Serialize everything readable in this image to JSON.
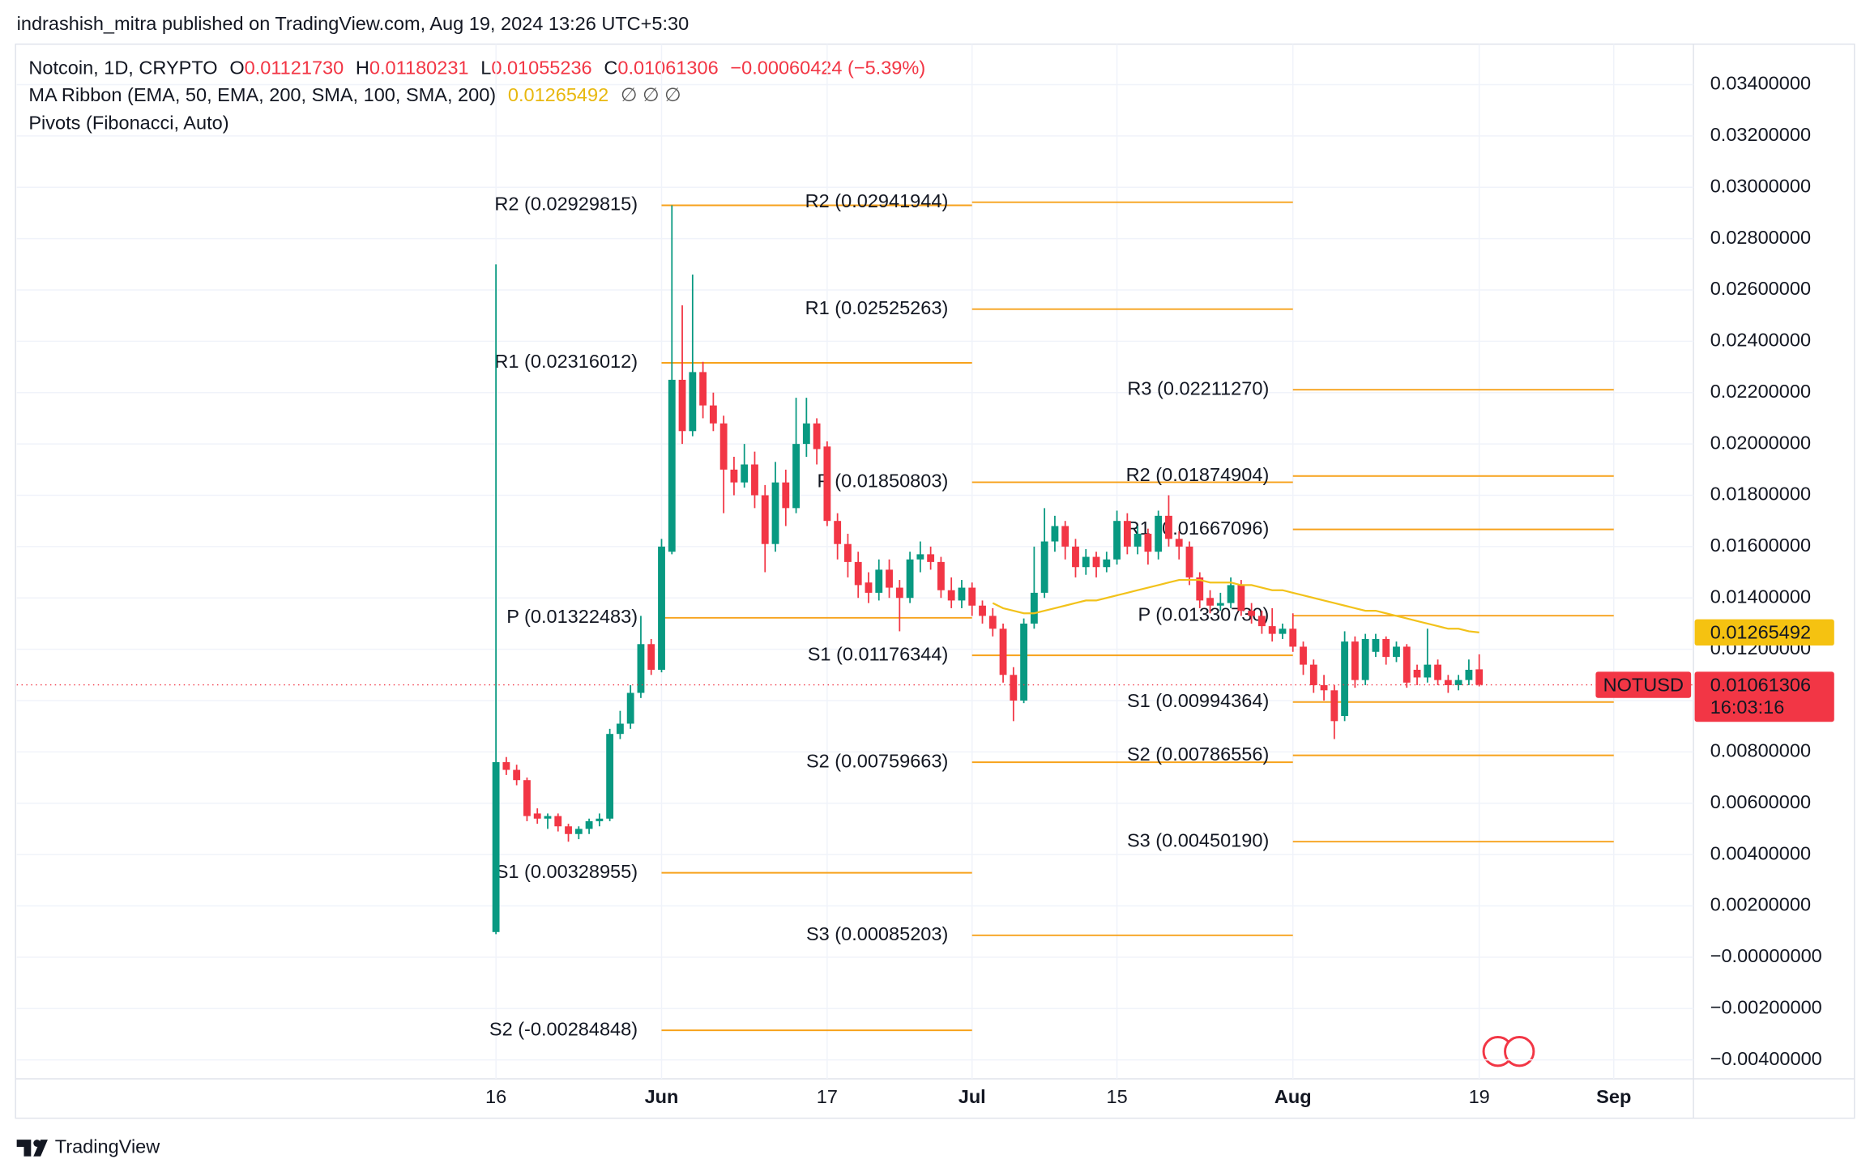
{
  "header": {
    "published": "indrashish_mitra published on TradingView.com, Aug 19, 2024 13:26 UTC+5:30",
    "symbol": "Notcoin, 1D, CRYPTO",
    "o_label": "O",
    "o": "0.01121730",
    "h_label": "H",
    "h": "0.01180231",
    "l_label": "L",
    "l": "0.01055236",
    "c_label": "C",
    "c": "0.01061306",
    "change": "−0.00060424 (−5.39%)",
    "ma_ribbon": "MA Ribbon (EMA, 50, EMA, 200, SMA, 100, SMA, 200)",
    "ma_empty": "∅ ∅ ∅",
    "pivots": "Pivots (Fibonacci, Auto)",
    "countdown": "16:03:16"
  },
  "footer": "TradingView",
  "chart_data": {
    "type": "candlestick",
    "xlim": [
      -46.3,
      115.7
    ],
    "xticks": [
      {
        "value": 0,
        "label": "16"
      },
      {
        "value": 16,
        "label": "Jun"
      },
      {
        "value": 32,
        "label": "17"
      },
      {
        "value": 46,
        "label": "Jul"
      },
      {
        "value": 60,
        "label": "15"
      },
      {
        "value": 77,
        "label": "Aug"
      },
      {
        "value": 95,
        "label": "19"
      },
      {
        "value": 108,
        "label": "Sep"
      }
    ],
    "ylim": [
      -0.00474,
      0.03558
    ],
    "yticks": [
      {
        "value": 0.034,
        "label": "0.03400000"
      },
      {
        "value": 0.032,
        "label": "0.03200000"
      },
      {
        "value": 0.03,
        "label": "0.03000000"
      },
      {
        "value": 0.028,
        "label": "0.02800000"
      },
      {
        "value": 0.026,
        "label": "0.02600000"
      },
      {
        "value": 0.024,
        "label": "0.02400000"
      },
      {
        "value": 0.022,
        "label": "0.02200000"
      },
      {
        "value": 0.02,
        "label": "0.02000000"
      },
      {
        "value": 0.018,
        "label": "0.01800000"
      },
      {
        "value": 0.016,
        "label": "0.01600000"
      },
      {
        "value": 0.014,
        "label": "0.01400000"
      },
      {
        "value": 0.012,
        "label": "0.01200000"
      },
      {
        "value": 0.01,
        "label": "0.01000000"
      },
      {
        "value": 0.008,
        "label": "0.00800000"
      },
      {
        "value": 0.006,
        "label": "0.00600000"
      },
      {
        "value": 0.004,
        "label": "0.00400000"
      },
      {
        "value": 0.002,
        "label": "0.00200000"
      },
      {
        "value": 0,
        "label": "−0.00000000"
      },
      {
        "value": -0.002,
        "label": "−0.00200000"
      },
      {
        "value": -0.004,
        "label": "−0.00400000"
      }
    ],
    "grid": true,
    "series": [
      {
        "name": "NOTUSD",
        "up_color": "#089981",
        "down_color": "#f23645",
        "open": [
          0.00098,
          0.0076,
          0.0073,
          0.0069,
          0.0056,
          0.0054,
          0.0055,
          0.0051,
          0.0048,
          0.005,
          0.0053,
          0.0054,
          0.0087,
          0.0091,
          0.0103,
          0.0122,
          0.0112,
          0.0158,
          0.0225,
          0.0205,
          0.0228,
          0.0215,
          0.0208,
          0.019,
          0.0185,
          0.0192,
          0.018,
          0.0161,
          0.0185,
          0.0175,
          0.02,
          0.0208,
          0.0199,
          0.017,
          0.0161,
          0.0154,
          0.0146,
          0.0142,
          0.0151,
          0.0144,
          0.014,
          0.0155,
          0.0157,
          0.0154,
          0.0143,
          0.0139,
          0.0144,
          0.0137,
          0.0133,
          0.0128,
          0.011,
          0.01,
          0.013,
          0.0142,
          0.0162,
          0.0168,
          0.016,
          0.0152,
          0.0156,
          0.0152,
          0.0155,
          0.017,
          0.016,
          0.0165,
          0.0158,
          0.0172,
          0.0163,
          0.016,
          0.0148,
          0.014,
          0.0137,
          0.0138,
          0.0145,
          0.0135,
          0.0133,
          0.0129,
          0.0126,
          0.0128,
          0.0121,
          0.0114,
          0.0106,
          0.0104,
          0.0094,
          0.0123,
          0.0108,
          0.0119,
          0.0124,
          0.0117,
          0.0121,
          0.0112,
          0.0109,
          0.0114,
          0.0108,
          0.0106,
          0.0108,
          0.0112173
        ],
        "high": [
          0.027,
          0.0078,
          0.0075,
          0.007,
          0.0058,
          0.0056,
          0.0056,
          0.0052,
          0.0051,
          0.0054,
          0.0056,
          0.0089,
          0.0096,
          0.0106,
          0.0133,
          0.0124,
          0.0163,
          0.0293,
          0.0254,
          0.0266,
          0.0232,
          0.022,
          0.0211,
          0.0195,
          0.02,
          0.0197,
          0.0184,
          0.0193,
          0.019,
          0.0218,
          0.0218,
          0.021,
          0.0201,
          0.0173,
          0.0165,
          0.0158,
          0.015,
          0.0155,
          0.0155,
          0.0147,
          0.0158,
          0.0162,
          0.016,
          0.0156,
          0.0148,
          0.0147,
          0.0146,
          0.0139,
          0.0136,
          0.013,
          0.0113,
          0.0132,
          0.016,
          0.0175,
          0.0172,
          0.017,
          0.0163,
          0.0159,
          0.0158,
          0.0158,
          0.0174,
          0.0173,
          0.0168,
          0.0167,
          0.0174,
          0.018,
          0.0166,
          0.0162,
          0.015,
          0.0143,
          0.0142,
          0.0148,
          0.0147,
          0.0138,
          0.0135,
          0.0136,
          0.013,
          0.0134,
          0.0123,
          0.0116,
          0.011,
          0.0106,
          0.0127,
          0.0125,
          0.0126,
          0.0126,
          0.0125,
          0.0123,
          0.0122,
          0.0114,
          0.0128,
          0.0116,
          0.011,
          0.011,
          0.0116,
          0.01180231
        ],
        "low": [
          0.0009,
          0.0071,
          0.0067,
          0.0053,
          0.0052,
          0.005,
          0.0049,
          0.0045,
          0.0046,
          0.0048,
          0.0051,
          0.0053,
          0.0085,
          0.0089,
          0.0101,
          0.011,
          0.0111,
          0.0157,
          0.02,
          0.0203,
          0.021,
          0.0205,
          0.0173,
          0.018,
          0.0183,
          0.0175,
          0.015,
          0.0158,
          0.0168,
          0.0173,
          0.0195,
          0.0192,
          0.0168,
          0.0155,
          0.0148,
          0.014,
          0.0138,
          0.0139,
          0.014,
          0.0127,
          0.0138,
          0.015,
          0.0151,
          0.014,
          0.0136,
          0.0136,
          0.0133,
          0.013,
          0.0125,
          0.0107,
          0.0092,
          0.0099,
          0.0128,
          0.014,
          0.0158,
          0.0155,
          0.0148,
          0.0149,
          0.0148,
          0.015,
          0.0153,
          0.0157,
          0.0157,
          0.0153,
          0.0155,
          0.016,
          0.0155,
          0.0145,
          0.0136,
          0.0134,
          0.0135,
          0.0136,
          0.0133,
          0.013,
          0.0126,
          0.0123,
          0.0124,
          0.0119,
          0.011,
          0.0103,
          0.01,
          0.0085,
          0.0092,
          0.0105,
          0.0106,
          0.0117,
          0.0114,
          0.0115,
          0.0105,
          0.0106,
          0.0107,
          0.0106,
          0.0103,
          0.0104,
          0.0106,
          0.01055236
        ],
        "close": [
          0.0076,
          0.0073,
          0.0069,
          0.0055,
          0.0054,
          0.0055,
          0.0051,
          0.0048,
          0.005,
          0.0053,
          0.0054,
          0.0087,
          0.0091,
          0.0103,
          0.0122,
          0.0112,
          0.016,
          0.0225,
          0.0205,
          0.0228,
          0.0215,
          0.0208,
          0.019,
          0.0185,
          0.0192,
          0.018,
          0.0161,
          0.0185,
          0.0175,
          0.02,
          0.0208,
          0.0198,
          0.017,
          0.0161,
          0.0154,
          0.0145,
          0.0142,
          0.0151,
          0.0144,
          0.014,
          0.0155,
          0.0157,
          0.0154,
          0.0143,
          0.0139,
          0.0144,
          0.0137,
          0.0133,
          0.0128,
          0.011,
          0.01,
          0.013,
          0.0142,
          0.0162,
          0.0168,
          0.016,
          0.0152,
          0.0156,
          0.0152,
          0.0155,
          0.017,
          0.016,
          0.0165,
          0.0158,
          0.0172,
          0.0163,
          0.016,
          0.0148,
          0.0139,
          0.0137,
          0.0138,
          0.0145,
          0.0135,
          0.0133,
          0.0129,
          0.0126,
          0.0128,
          0.0121,
          0.0114,
          0.0106,
          0.0104,
          0.0092,
          0.0123,
          0.0108,
          0.0124,
          0.0124,
          0.0117,
          0.0121,
          0.0107,
          0.0109,
          0.0114,
          0.0108,
          0.0106,
          0.0108,
          0.0112,
          0.01061306
        ]
      },
      {
        "name": "MA Ribbon",
        "color": "#f2c21b",
        "values": [
          null,
          null,
          null,
          null,
          null,
          null,
          null,
          null,
          null,
          null,
          null,
          null,
          null,
          null,
          null,
          null,
          null,
          null,
          null,
          null,
          null,
          null,
          null,
          null,
          null,
          null,
          null,
          null,
          null,
          null,
          null,
          null,
          null,
          null,
          null,
          null,
          null,
          null,
          null,
          null,
          null,
          null,
          null,
          null,
          null,
          null,
          null,
          null,
          0.0138,
          0.0136,
          0.0135,
          0.0134,
          0.0134,
          0.0135,
          0.0136,
          0.0137,
          0.0138,
          0.0139,
          0.0139,
          0.014,
          0.0141,
          0.0142,
          0.0143,
          0.0144,
          0.0145,
          0.0146,
          0.0147,
          0.0147,
          0.0147,
          0.0146,
          0.0146,
          0.0146,
          0.0145,
          0.0145,
          0.0144,
          0.0143,
          0.0143,
          0.0142,
          0.0141,
          0.014,
          0.0139,
          0.0138,
          0.0137,
          0.0136,
          0.0135,
          0.0135,
          0.0134,
          0.0133,
          0.0132,
          0.0131,
          0.013,
          0.0129,
          0.0128,
          0.0128,
          0.0127,
          0.01265492
        ]
      }
    ],
    "pivots": {
      "color": "#f7a21b",
      "periods": [
        {
          "start": 16,
          "end": 46,
          "levels": [
            {
              "label": "R2 (0.02929815)",
              "value": 0.02929815
            },
            {
              "label": "R1 (0.02316012)",
              "value": 0.02316012
            },
            {
              "label": "P (0.01322483)",
              "value": 0.01322483
            },
            {
              "label": "S1 (0.00328955)",
              "value": 0.00328955
            },
            {
              "label": "S2 (-0.00284848)",
              "value": -0.00284848
            }
          ]
        },
        {
          "start": 46,
          "end": 77,
          "levels": [
            {
              "label": "R2 (0.02941944)",
              "value": 0.02941944
            },
            {
              "label": "R1 (0.02525263)",
              "value": 0.02525263
            },
            {
              "label": "P (0.01850803)",
              "value": 0.01850803
            },
            {
              "label": "S1 (0.01176344)",
              "value": 0.01176344
            },
            {
              "label": "S2 (0.00759663)",
              "value": 0.00759663
            },
            {
              "label": "S3 (0.00085203)",
              "value": 0.00085203
            }
          ]
        },
        {
          "start": 77,
          "end": 108,
          "levels": [
            {
              "label": "R3 (0.02211270)",
              "value": 0.0221127
            },
            {
              "label": "R2 (0.01874904)",
              "value": 0.01874904
            },
            {
              "label": "R1 (0.01667096)",
              "value": 0.01667096
            },
            {
              "label": "P (0.01330730)",
              "value": 0.0133073
            },
            {
              "label": "S1 (0.00994364)",
              "value": 0.00994364
            },
            {
              "label": "S2 (0.00786556)",
              "value": 0.00786556
            },
            {
              "label": "S3 (0.00450190)",
              "value": 0.0045019
            }
          ]
        }
      ]
    }
  }
}
